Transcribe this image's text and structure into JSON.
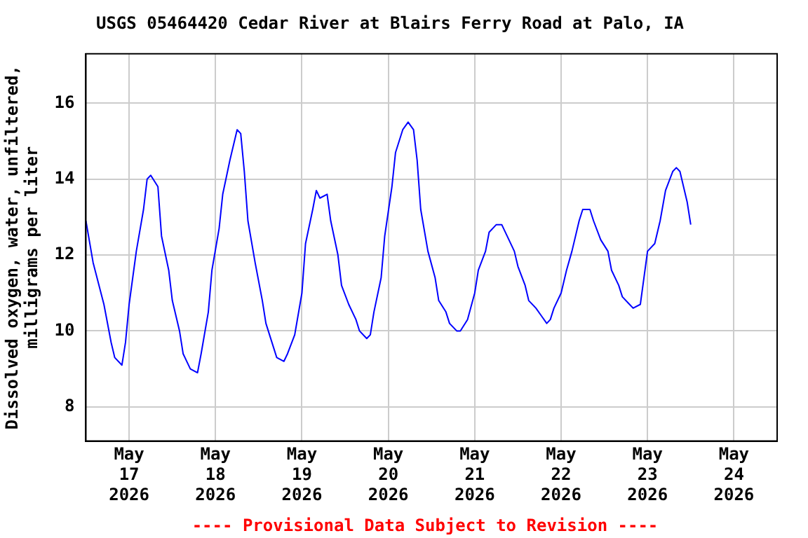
{
  "chart_data": {
    "type": "line",
    "title": "USGS 05464420 Cedar River at Blairs Ferry Road at Palo, IA",
    "ylabel": "Dissolved oxygen, water, unfiltered,\nmilligrams per liter",
    "annotations": [
      "---- Provisional Data Subject to Revision ----"
    ],
    "x": [
      "2026-05-16T12:00",
      "2026-05-16T14:00",
      "2026-05-16T17:00",
      "2026-05-16T19:00",
      "2026-05-16T20:00",
      "2026-05-16T22:00",
      "2026-05-16T23:00",
      "2026-05-17T00:00",
      "2026-05-17T02:00",
      "2026-05-17T04:00",
      "2026-05-17T05:00",
      "2026-05-17T06:00",
      "2026-05-17T08:00",
      "2026-05-17T09:00",
      "2026-05-17T11:00",
      "2026-05-17T12:00",
      "2026-05-17T14:00",
      "2026-05-17T15:00",
      "2026-05-17T17:00",
      "2026-05-17T19:00",
      "2026-05-17T20:00",
      "2026-05-17T22:00",
      "2026-05-17T23:00",
      "2026-05-18T01:00",
      "2026-05-18T02:00",
      "2026-05-18T04:00",
      "2026-05-18T06:00",
      "2026-05-18T07:00",
      "2026-05-18T08:00",
      "2026-05-18T09:00",
      "2026-05-18T11:00",
      "2026-05-18T13:00",
      "2026-05-18T14:00",
      "2026-05-18T16:00",
      "2026-05-18T17:00",
      "2026-05-18T19:00",
      "2026-05-18T20:00",
      "2026-05-18T22:00",
      "2026-05-19T00:00",
      "2026-05-19T01:00",
      "2026-05-19T03:00",
      "2026-05-19T04:00",
      "2026-05-19T05:00",
      "2026-05-19T07:00",
      "2026-05-19T08:00",
      "2026-05-19T10:00",
      "2026-05-19T11:00",
      "2026-05-19T13:00",
      "2026-05-19T15:00",
      "2026-05-19T16:00",
      "2026-05-19T18:00",
      "2026-05-19T19:00",
      "2026-05-19T20:00",
      "2026-05-19T22:00",
      "2026-05-19T23:00",
      "2026-05-20T01:00",
      "2026-05-20T02:00",
      "2026-05-20T04:00",
      "2026-05-20T05:30",
      "2026-05-20T07:00",
      "2026-05-20T08:00",
      "2026-05-20T09:00",
      "2026-05-20T11:00",
      "2026-05-20T13:00",
      "2026-05-20T14:00",
      "2026-05-20T16:00",
      "2026-05-20T17:00",
      "2026-05-20T19:00",
      "2026-05-20T20:00",
      "2026-05-20T22:00",
      "2026-05-21T00:00",
      "2026-05-21T01:00",
      "2026-05-21T03:00",
      "2026-05-21T04:00",
      "2026-05-21T06:00",
      "2026-05-21T07:30",
      "2026-05-21T09:00",
      "2026-05-21T11:00",
      "2026-05-21T12:00",
      "2026-05-21T14:00",
      "2026-05-21T15:00",
      "2026-05-21T17:00",
      "2026-05-21T18:30",
      "2026-05-21T20:00",
      "2026-05-21T21:00",
      "2026-05-21T22:00",
      "2026-05-22T00:00",
      "2026-05-22T01:30",
      "2026-05-22T03:00",
      "2026-05-22T05:00",
      "2026-05-22T06:00",
      "2026-05-22T08:00",
      "2026-05-22T09:00",
      "2026-05-22T11:00",
      "2026-05-22T13:00",
      "2026-05-22T14:00",
      "2026-05-22T16:00",
      "2026-05-22T17:00",
      "2026-05-22T19:00",
      "2026-05-22T20:00",
      "2026-05-22T22:00",
      "2026-05-22T23:00",
      "2026-05-23T00:00",
      "2026-05-23T02:00",
      "2026-05-23T03:30",
      "2026-05-23T05:00",
      "2026-05-23T07:00",
      "2026-05-23T08:00",
      "2026-05-23T09:00",
      "2026-05-23T11:00",
      "2026-05-23T12:00"
    ],
    "series": [
      {
        "color": "#0000ff",
        "values": [
          12.9,
          11.8,
          10.7,
          9.7,
          9.3,
          9.1,
          9.7,
          10.7,
          12.1,
          13.2,
          14.0,
          14.1,
          13.8,
          12.5,
          11.6,
          10.8,
          10.0,
          9.4,
          9.0,
          8.9,
          9.4,
          10.5,
          11.6,
          12.7,
          13.6,
          14.5,
          15.3,
          15.2,
          14.2,
          12.9,
          11.8,
          10.8,
          10.2,
          9.6,
          9.3,
          9.2,
          9.4,
          9.9,
          11.0,
          12.3,
          13.2,
          13.7,
          13.5,
          13.6,
          12.9,
          12.0,
          11.2,
          10.7,
          10.3,
          10.0,
          9.8,
          9.9,
          10.5,
          11.4,
          12.5,
          13.8,
          14.7,
          15.3,
          15.5,
          15.3,
          14.5,
          13.2,
          12.1,
          11.4,
          10.8,
          10.5,
          10.2,
          10.0,
          10.0,
          10.3,
          11.0,
          11.6,
          12.1,
          12.6,
          12.8,
          12.8,
          12.5,
          12.1,
          11.7,
          11.2,
          10.8,
          10.6,
          10.4,
          10.2,
          10.3,
          10.6,
          11.0,
          11.6,
          12.1,
          12.9,
          13.2,
          13.2,
          12.9,
          12.4,
          12.1,
          11.6,
          11.2,
          10.9,
          10.7,
          10.6,
          10.7,
          11.4,
          12.1,
          12.3,
          12.9,
          13.7,
          14.2,
          14.3,
          14.2,
          13.4,
          12.8
        ]
      }
    ],
    "xlim": [
      "2026-05-16T12:00",
      "2026-05-24T12:00"
    ],
    "xticks": [
      {
        "value": "2026-05-17",
        "label": "May\n17\n2026"
      },
      {
        "value": "2026-05-18",
        "label": "May\n18\n2026"
      },
      {
        "value": "2026-05-19",
        "label": "May\n19\n2026"
      },
      {
        "value": "2026-05-20",
        "label": "May\n20\n2026"
      },
      {
        "value": "2026-05-21",
        "label": "May\n21\n2026"
      },
      {
        "value": "2026-05-22",
        "label": "May\n22\n2026"
      },
      {
        "value": "2026-05-23",
        "label": "May\n23\n2026"
      },
      {
        "value": "2026-05-24",
        "label": "May\n24\n2026"
      }
    ],
    "ylim": [
      7.1,
      17.3
    ],
    "yticks": [
      8,
      10,
      12,
      14,
      16
    ],
    "grid": true,
    "legend": false,
    "marker": "none",
    "line_style": "solid"
  }
}
